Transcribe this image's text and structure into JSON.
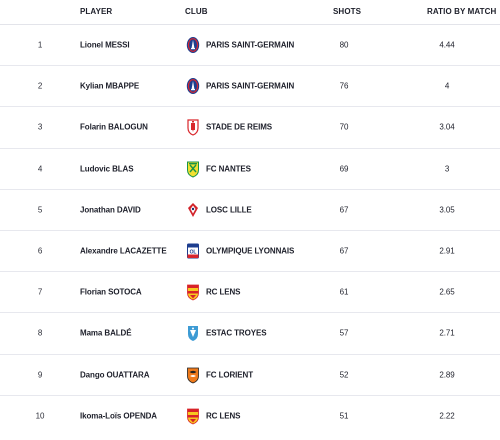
{
  "header": {
    "player": "PLAYER",
    "club": "CLUB",
    "shots": "SHOTS",
    "ratio": "RATIO BY MATCH"
  },
  "rows": [
    {
      "rank": "1",
      "player": "Lionel MESSI",
      "club": "PARIS SAINT-GERMAIN",
      "crest": "psg-crest-icon",
      "shots": "80",
      "ratio": "4.44"
    },
    {
      "rank": "2",
      "player": "Kylian MBAPPE",
      "club": "PARIS SAINT-GERMAIN",
      "crest": "psg-crest-icon",
      "shots": "76",
      "ratio": "4"
    },
    {
      "rank": "3",
      "player": "Folarin BALOGUN",
      "club": "STADE DE REIMS",
      "crest": "reims-crest-icon",
      "shots": "70",
      "ratio": "3.04"
    },
    {
      "rank": "4",
      "player": "Ludovic BLAS",
      "club": "FC NANTES",
      "crest": "nantes-crest-icon",
      "shots": "69",
      "ratio": "3"
    },
    {
      "rank": "5",
      "player": "Jonathan DAVID",
      "club": "LOSC LILLE",
      "crest": "lille-crest-icon",
      "shots": "67",
      "ratio": "3.05"
    },
    {
      "rank": "6",
      "player": "Alexandre LACAZETTE",
      "club": "OLYMPIQUE LYONNAIS",
      "crest": "lyon-crest-icon",
      "shots": "67",
      "ratio": "2.91"
    },
    {
      "rank": "7",
      "player": "Florian SOTOCA",
      "club": "RC LENS",
      "crest": "lens-crest-icon",
      "shots": "61",
      "ratio": "2.65"
    },
    {
      "rank": "8",
      "player": "Mama BALDÉ",
      "club": "ESTAC TROYES",
      "crest": "troyes-crest-icon",
      "shots": "57",
      "ratio": "2.71"
    },
    {
      "rank": "9",
      "player": "Dango OUATTARA",
      "club": "FC LORIENT",
      "crest": "lorient-crest-icon",
      "shots": "52",
      "ratio": "2.89"
    },
    {
      "rank": "10",
      "player": "Ikoma-Loïs OPENDA",
      "club": "RC LENS",
      "crest": "lens-crest-icon",
      "shots": "51",
      "ratio": "2.22"
    }
  ],
  "colors": {
    "text": "#1d1f2a",
    "divider": "#e7e8ee",
    "psg_blue": "#1d3f8f",
    "psg_red": "#d8262e",
    "reims_red": "#d9262b",
    "nantes_yellow": "#f2e130",
    "nantes_green": "#199447",
    "lille_red": "#d2232a",
    "lyon_blue": "#1d3d8f",
    "lens_red": "#d82228",
    "lens_yellow": "#f7c81f",
    "troyes_blue": "#3d9bd4",
    "lorient_orange": "#ef7a1b"
  }
}
